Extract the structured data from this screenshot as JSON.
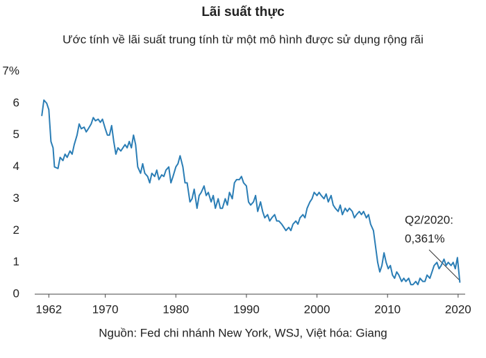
{
  "chart_data": {
    "type": "line",
    "title": "Lãi suất thực",
    "subtitle": "Ước tính về lãi suất trung tính từ một mô hình được sử dụng rộng rãi",
    "source": "Nguồn: Fed chi nhánh New York, WSJ, Việt hóa: Giang",
    "annotation": [
      "Q2/2020:",
      "0,361%"
    ],
    "color": "#2a7db5",
    "xlim": [
      1960,
      2021
    ],
    "xticks": [
      1962,
      1970,
      1980,
      1990,
      2000,
      2010,
      2020
    ],
    "ylim": [
      0,
      7
    ],
    "yticks": [
      0,
      1,
      2,
      3,
      4,
      5,
      6,
      {
        "value": 7,
        "label": "7%"
      }
    ],
    "x": [
      1961.0,
      1961.3,
      1961.7,
      1962.0,
      1962.3,
      1962.6,
      1962.8,
      1963.3,
      1963.6,
      1964.0,
      1964.3,
      1964.6,
      1965.0,
      1965.3,
      1965.6,
      1966.0,
      1966.3,
      1966.6,
      1967.0,
      1967.3,
      1967.6,
      1968.0,
      1968.3,
      1968.6,
      1969.0,
      1969.3,
      1969.6,
      1970.0,
      1970.3,
      1970.6,
      1970.9,
      1971.2,
      1971.5,
      1971.8,
      1972.2,
      1972.5,
      1972.8,
      1973.1,
      1973.4,
      1973.7,
      1974.0,
      1974.3,
      1974.6,
      1975.0,
      1975.3,
      1975.6,
      1976.0,
      1976.3,
      1976.6,
      1977.0,
      1977.3,
      1977.6,
      1978.0,
      1978.3,
      1978.6,
      1979.0,
      1979.3,
      1979.6,
      1980.0,
      1980.3,
      1980.6,
      1981.0,
      1981.3,
      1981.6,
      1982.0,
      1982.3,
      1982.6,
      1983.0,
      1983.3,
      1983.6,
      1984.0,
      1984.3,
      1984.6,
      1985.0,
      1985.3,
      1985.6,
      1986.0,
      1986.3,
      1986.6,
      1987.0,
      1987.3,
      1987.6,
      1988.0,
      1988.3,
      1988.6,
      1989.0,
      1989.3,
      1989.6,
      1990.0,
      1990.3,
      1990.6,
      1991.0,
      1991.3,
      1991.6,
      1992.0,
      1992.3,
      1992.6,
      1993.0,
      1993.3,
      1993.6,
      1994.0,
      1994.3,
      1994.6,
      1995.0,
      1995.3,
      1995.6,
      1996.0,
      1996.3,
      1996.6,
      1997.0,
      1997.3,
      1997.6,
      1998.0,
      1998.3,
      1998.6,
      1999.0,
      1999.3,
      1999.6,
      2000.0,
      2000.3,
      2000.6,
      2001.0,
      2001.3,
      2001.6,
      2002.0,
      2002.3,
      2002.6,
      2003.0,
      2003.3,
      2003.6,
      2004.0,
      2004.3,
      2004.6,
      2005.0,
      2005.3,
      2005.6,
      2006.0,
      2006.3,
      2006.6,
      2007.0,
      2007.3,
      2007.6,
      2008.0,
      2008.3,
      2008.6,
      2008.9,
      2009.2,
      2009.5,
      2009.8,
      2010.1,
      2010.4,
      2010.7,
      2011.0,
      2011.3,
      2011.6,
      2012.0,
      2012.3,
      2012.6,
      2013.0,
      2013.3,
      2013.6,
      2014.0,
      2014.3,
      2014.6,
      2015.0,
      2015.3,
      2015.6,
      2016.0,
      2016.3,
      2016.6,
      2017.0,
      2017.3,
      2017.6,
      2018.0,
      2018.3,
      2018.6,
      2019.0,
      2019.3,
      2019.6,
      2019.9,
      2020.25
    ],
    "values": [
      5.6,
      6.1,
      6.0,
      5.8,
      4.8,
      4.6,
      4.0,
      3.95,
      4.3,
      4.2,
      4.4,
      4.3,
      4.5,
      4.4,
      4.7,
      5.0,
      5.35,
      5.2,
      5.25,
      5.1,
      5.2,
      5.35,
      5.55,
      5.45,
      5.5,
      5.4,
      5.5,
      5.2,
      5.0,
      5.0,
      5.3,
      4.8,
      4.4,
      4.6,
      4.5,
      4.6,
      4.7,
      4.6,
      4.8,
      4.6,
      5.0,
      4.7,
      4.0,
      3.8,
      4.1,
      3.8,
      3.7,
      3.5,
      3.8,
      3.7,
      3.9,
      3.6,
      3.75,
      3.7,
      3.9,
      4.0,
      3.5,
      3.7,
      4.0,
      4.1,
      4.35,
      4.0,
      3.5,
      3.5,
      2.9,
      3.0,
      3.3,
      2.7,
      3.1,
      3.2,
      3.4,
      3.1,
      3.2,
      2.9,
      3.1,
      2.7,
      3.0,
      2.7,
      2.7,
      3.0,
      2.8,
      3.2,
      3.0,
      3.5,
      3.6,
      3.6,
      3.7,
      3.5,
      3.4,
      2.9,
      2.8,
      2.9,
      3.1,
      2.6,
      2.9,
      2.6,
      2.4,
      2.5,
      2.3,
      2.4,
      2.5,
      2.3,
      2.3,
      2.2,
      2.1,
      2.0,
      2.1,
      2.0,
      2.2,
      2.3,
      2.2,
      2.4,
      2.5,
      2.4,
      2.7,
      2.9,
      3.0,
      3.2,
      3.1,
      3.2,
      3.1,
      3.0,
      3.15,
      2.9,
      3.1,
      2.8,
      2.7,
      2.6,
      2.8,
      2.5,
      2.7,
      2.6,
      2.7,
      2.6,
      2.4,
      2.5,
      2.6,
      2.5,
      2.6,
      2.4,
      2.5,
      2.2,
      2.0,
      1.5,
      1.0,
      0.7,
      0.9,
      1.3,
      1.0,
      0.8,
      0.9,
      0.6,
      0.5,
      0.7,
      0.6,
      0.4,
      0.5,
      0.4,
      0.5,
      0.3,
      0.3,
      0.4,
      0.3,
      0.5,
      0.4,
      0.4,
      0.6,
      0.5,
      0.7,
      0.9,
      1.0,
      0.8,
      0.9,
      1.1,
      0.9,
      1.0,
      0.9,
      1.0,
      0.8,
      1.15,
      0.361
    ]
  }
}
